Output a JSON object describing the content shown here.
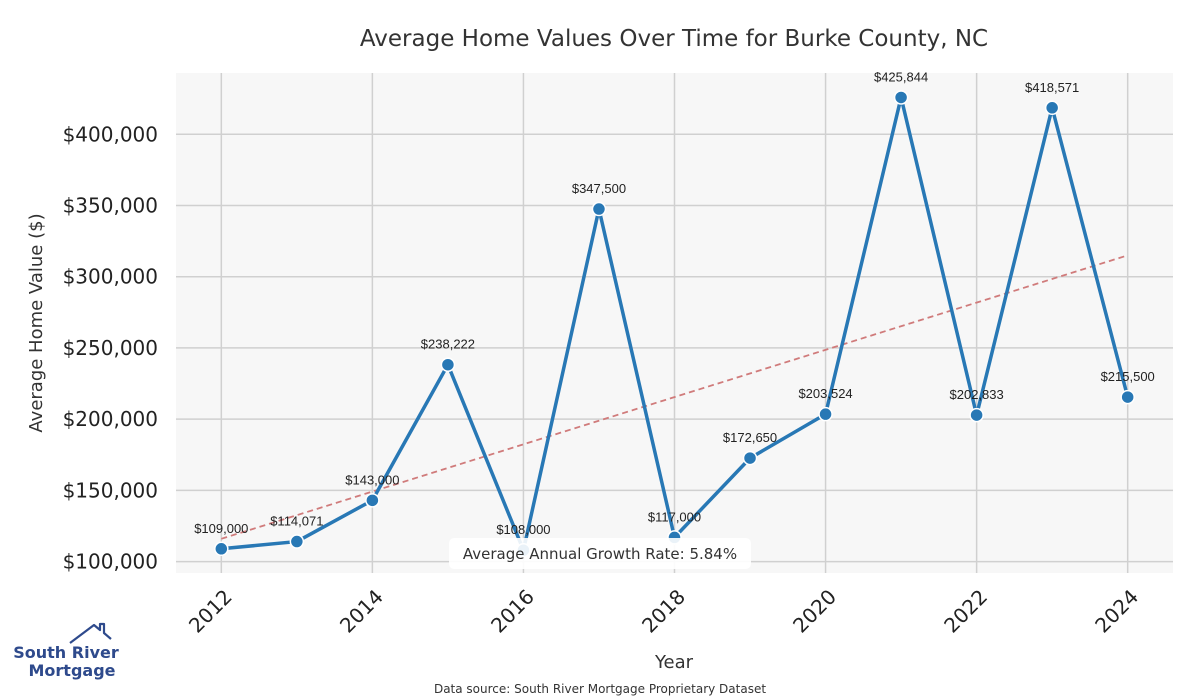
{
  "chart_data": {
    "type": "line",
    "title": "Average Home Values Over Time for Burke County, NC",
    "xlabel": "Year",
    "ylabel": "Average Home Value ($)",
    "x": [
      2012,
      2013,
      2014,
      2015,
      2016,
      2017,
      2018,
      2019,
      2020,
      2021,
      2022,
      2023,
      2024
    ],
    "values": [
      109000,
      114071,
      143000,
      238222,
      108000,
      347500,
      117000,
      172650,
      203524,
      425844,
      202833,
      418571,
      215500
    ],
    "data_labels": [
      "$109,000",
      "$114,071",
      "$143,000",
      "$238,222",
      "$108,000",
      "$347,500",
      "$117,000",
      "$172,650",
      "$203,524",
      "$425,844",
      "$202,833",
      "$418,571",
      "$215,500"
    ],
    "xticks": [
      "2012",
      "2014",
      "2016",
      "2018",
      "2020",
      "2022",
      "2024"
    ],
    "xtick_values": [
      2012,
      2014,
      2016,
      2018,
      2020,
      2022,
      2024
    ],
    "yticks": [
      "$100,000",
      "$150,000",
      "$200,000",
      "$250,000",
      "$300,000",
      "$350,000",
      "$400,000"
    ],
    "ytick_values": [
      100000,
      150000,
      200000,
      250000,
      300000,
      350000,
      400000
    ],
    "xlim": [
      2011.4,
      2024.6
    ],
    "ylim": [
      92000,
      443000
    ],
    "trend_line": {
      "x": [
        2012,
        2024
      ],
      "y": [
        116000,
        315000
      ],
      "color": "#d07b7b",
      "style": "dashed"
    },
    "annotation": "Average Annual Growth Rate: 5.84%",
    "line_color": "#2878b5",
    "grid": true,
    "legend": "none"
  },
  "footer": {
    "source": "Data source: South River Mortgage Proprietary Dataset"
  },
  "logo": {
    "line1": "South River",
    "line2": "Mortgage",
    "color": "#2e4a8c"
  }
}
